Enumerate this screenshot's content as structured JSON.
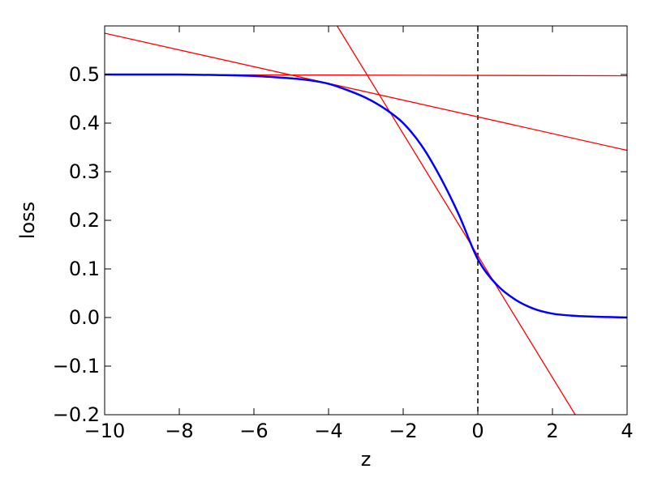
{
  "chart_data": {
    "type": "line",
    "xlabel": "z",
    "ylabel": "loss",
    "xlim": [
      -10,
      4
    ],
    "ylim": [
      -0.2,
      0.6
    ],
    "x_ticks": [
      -10,
      -8,
      -6,
      -4,
      -2,
      0,
      2,
      4
    ],
    "x_tick_labels": [
      "−10",
      "−8",
      "−6",
      "−4",
      "−2",
      "0",
      "2",
      "4"
    ],
    "y_ticks": [
      -0.2,
      -0.1,
      0.0,
      0.1,
      0.2,
      0.3,
      0.4,
      0.5
    ],
    "y_tick_labels": [
      "−0.2",
      "−0.1",
      "0.0",
      "0.1",
      "0.2",
      "0.3",
      "0.4",
      "0.5"
    ],
    "grid": false,
    "legend": "none",
    "series": [
      {
        "role": "curve",
        "color": "#0000ff",
        "x": [
          -10,
          -9,
          -8,
          -7,
          -6,
          -5,
          -4.5,
          -4,
          -3.5,
          -3,
          -2.5,
          -2,
          -1.5,
          -1,
          -0.5,
          0,
          0.5,
          1,
          1.5,
          2,
          2.5,
          3,
          3.5,
          4
        ],
        "y": [
          0.5,
          0.5,
          0.5,
          0.499,
          0.497,
          0.492,
          0.488,
          0.481,
          0.468,
          0.452,
          0.43,
          0.4,
          0.353,
          0.288,
          0.21,
          0.12,
          0.068,
          0.037,
          0.018,
          0.008,
          0.004,
          0.002,
          0.001,
          0.0
        ]
      },
      {
        "role": "tangent",
        "color": "#ff0000",
        "x": [
          -10,
          4
        ],
        "y": [
          0.5,
          0.4975
        ]
      },
      {
        "role": "tangent",
        "color": "#ff0000",
        "x": [
          -10,
          4
        ],
        "y": [
          0.585,
          0.344
        ]
      },
      {
        "role": "tangent",
        "color": "#ff0000",
        "x": [
          -3.77,
          2.61
        ],
        "y": [
          0.6,
          -0.2
        ]
      }
    ],
    "vline": {
      "x": 0,
      "style": "dashed",
      "color": "#000000"
    }
  }
}
